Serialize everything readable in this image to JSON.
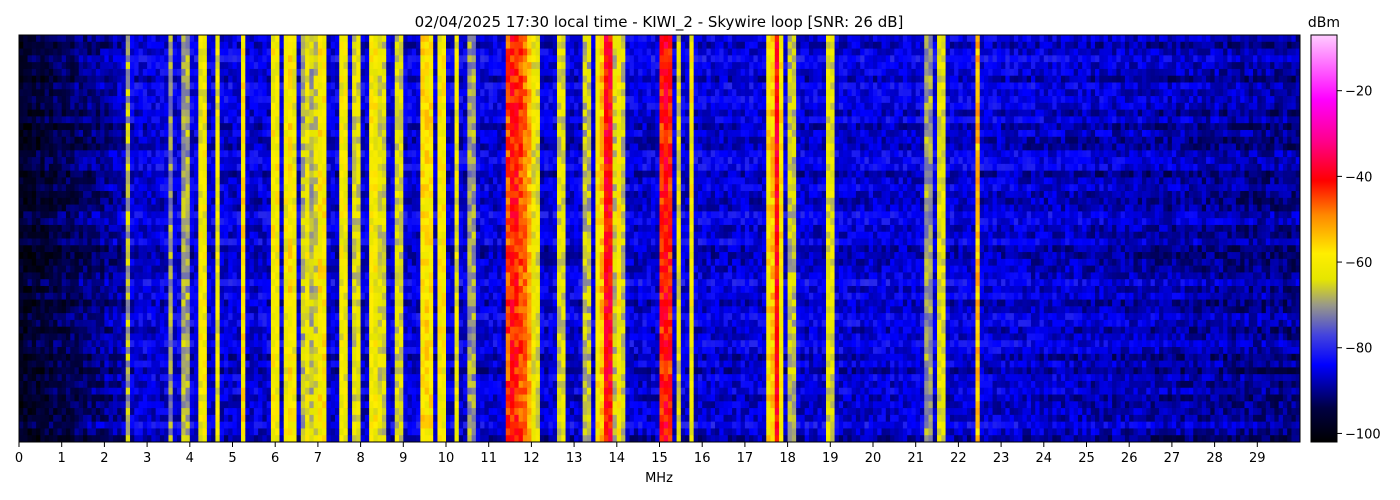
{
  "chart_data": {
    "type": "heatmap",
    "title": "02/04/2025 17:30 local time - KIWI_2 - Skywire loop [SNR: 26 dB]",
    "xlabel": "MHz",
    "xlim": [
      0,
      30
    ],
    "x_ticks": [
      "0",
      "1",
      "2",
      "3",
      "4",
      "5",
      "6",
      "7",
      "8",
      "9",
      "10",
      "11",
      "12",
      "13",
      "14",
      "15",
      "16",
      "17",
      "18",
      "19",
      "20",
      "21",
      "22",
      "23",
      "24",
      "25",
      "26",
      "27",
      "28",
      "29"
    ],
    "colorbar": {
      "label": "dBm",
      "range": [
        -102,
        -7
      ],
      "ticks": [
        "-100",
        "-80",
        "-60",
        "-40",
        "-20"
      ],
      "stops": [
        {
          "v": -102,
          "color": "#000000"
        },
        {
          "v": -94,
          "color": "#000044"
        },
        {
          "v": -84,
          "color": "#0000ff"
        },
        {
          "v": -77,
          "color": "#4444dd"
        },
        {
          "v": -70,
          "color": "#999988"
        },
        {
          "v": -64,
          "color": "#e6e600"
        },
        {
          "v": -58,
          "color": "#ffee00"
        },
        {
          "v": -49,
          "color": "#ff8800"
        },
        {
          "v": -41,
          "color": "#ff0000"
        },
        {
          "v": -32,
          "color": "#ff0088"
        },
        {
          "v": -22,
          "color": "#ff00ff"
        },
        {
          "v": -7,
          "color": "#ffccff"
        }
      ]
    },
    "background_dbm": -86,
    "signal_bands": [
      {
        "mhz": 2.55,
        "width": 0.04,
        "dbm": -68
      },
      {
        "mhz": 3.55,
        "width": 0.05,
        "dbm": -70
      },
      {
        "mhz": 3.9,
        "width": 0.05,
        "dbm": -66
      },
      {
        "mhz": 4.3,
        "width": 0.05,
        "dbm": -58
      },
      {
        "mhz": 4.65,
        "width": 0.04,
        "dbm": -62
      },
      {
        "mhz": 5.25,
        "width": 0.06,
        "dbm": -58
      },
      {
        "mhz": 6.0,
        "width": 0.12,
        "dbm": -60
      },
      {
        "mhz": 6.35,
        "width": 0.15,
        "dbm": -58
      },
      {
        "mhz": 6.75,
        "width": 0.1,
        "dbm": -62
      },
      {
        "mhz": 7.1,
        "width": 0.2,
        "dbm": -59
      },
      {
        "mhz": 7.6,
        "width": 0.08,
        "dbm": -60
      },
      {
        "mhz": 7.9,
        "width": 0.06,
        "dbm": -62
      },
      {
        "mhz": 8.3,
        "width": 0.06,
        "dbm": -58
      },
      {
        "mhz": 8.5,
        "width": 0.06,
        "dbm": -62
      },
      {
        "mhz": 8.9,
        "width": 0.06,
        "dbm": -62
      },
      {
        "mhz": 9.55,
        "width": 0.25,
        "dbm": -58
      },
      {
        "mhz": 9.9,
        "width": 0.15,
        "dbm": -60
      },
      {
        "mhz": 10.25,
        "width": 0.06,
        "dbm": -62
      },
      {
        "mhz": 10.6,
        "width": 0.04,
        "dbm": -66
      },
      {
        "mhz": 11.6,
        "width": 0.25,
        "dbm": -42
      },
      {
        "mhz": 11.85,
        "width": 0.12,
        "dbm": -48
      },
      {
        "mhz": 12.1,
        "width": 0.05,
        "dbm": -60
      },
      {
        "mhz": 12.7,
        "width": 0.06,
        "dbm": -62
      },
      {
        "mhz": 13.3,
        "width": 0.05,
        "dbm": -64
      },
      {
        "mhz": 13.65,
        "width": 0.12,
        "dbm": -54
      },
      {
        "mhz": 13.8,
        "width": 0.1,
        "dbm": -40
      },
      {
        "mhz": 14.05,
        "width": 0.1,
        "dbm": -60
      },
      {
        "mhz": 15.15,
        "width": 0.15,
        "dbm": -40
      },
      {
        "mhz": 15.45,
        "width": 0.04,
        "dbm": -64
      },
      {
        "mhz": 15.75,
        "width": 0.04,
        "dbm": -60
      },
      {
        "mhz": 17.7,
        "width": 0.25,
        "dbm": -55
      },
      {
        "mhz": 17.75,
        "width": 0.08,
        "dbm": -40
      },
      {
        "mhz": 18.1,
        "width": 0.05,
        "dbm": -64
      },
      {
        "mhz": 19.0,
        "width": 0.04,
        "dbm": -60
      },
      {
        "mhz": 21.3,
        "width": 0.04,
        "dbm": -66
      },
      {
        "mhz": 21.6,
        "width": 0.05,
        "dbm": -60
      },
      {
        "mhz": 22.45,
        "width": 0.05,
        "dbm": -54
      }
    ]
  }
}
